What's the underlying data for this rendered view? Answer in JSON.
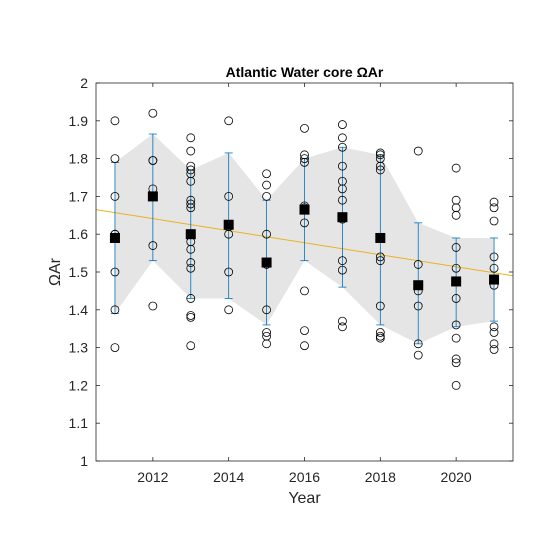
{
  "chart_data": {
    "type": "scatter",
    "title": "Atlantic Water core ΩAr",
    "xlabel": "Year",
    "ylabel": "ΩAr",
    "xlim": [
      2010.5,
      2021.5
    ],
    "ylim": [
      1.0,
      2.0
    ],
    "xticks": [
      2012,
      2014,
      2016,
      2018,
      2020
    ],
    "yticks": [
      1.0,
      1.1,
      1.2,
      1.3,
      1.4,
      1.5,
      1.6,
      1.7,
      1.8,
      1.9,
      2.0
    ],
    "ytick_labels": [
      "1",
      "1.1",
      "1.2",
      "1.3",
      "1.4",
      "1.5",
      "1.6",
      "1.7",
      "1.8",
      "1.9",
      "2"
    ],
    "grid": false,
    "legend": false,
    "colors": {
      "band": "#e5e5e5",
      "errorbar": "#0072bd",
      "trend": "#edb120",
      "mean_marker": "#000000",
      "sample_marker": "#000000",
      "axes": "#262626"
    },
    "samples": [
      {
        "year": 2011,
        "values": [
          1.9,
          1.8,
          1.7,
          1.6,
          1.6,
          1.5,
          1.4,
          1.3
        ]
      },
      {
        "year": 2012,
        "values": [
          1.92,
          1.795,
          1.795,
          1.72,
          1.7,
          1.57,
          1.41
        ]
      },
      {
        "year": 2013,
        "values": [
          1.855,
          1.82,
          1.78,
          1.77,
          1.76,
          1.74,
          1.69,
          1.68,
          1.67,
          1.58,
          1.56,
          1.525,
          1.51,
          1.43,
          1.385,
          1.38,
          1.305
        ]
      },
      {
        "year": 2014,
        "values": [
          1.9,
          1.7,
          1.62,
          1.6,
          1.5,
          1.4
        ]
      },
      {
        "year": 2015,
        "values": [
          1.76,
          1.73,
          1.7,
          1.6,
          1.52,
          1.4,
          1.34,
          1.33,
          1.31
        ]
      },
      {
        "year": 2016,
        "values": [
          1.88,
          1.81,
          1.8,
          1.79,
          1.675,
          1.67,
          1.63,
          1.45,
          1.345,
          1.305
        ]
      },
      {
        "year": 2017,
        "values": [
          1.89,
          1.855,
          1.83,
          1.78,
          1.74,
          1.72,
          1.69,
          1.64,
          1.53,
          1.505,
          1.37,
          1.355
        ]
      },
      {
        "year": 2018,
        "values": [
          1.815,
          1.81,
          1.8,
          1.78,
          1.77,
          1.54,
          1.53,
          1.41,
          1.34,
          1.33,
          1.325
        ]
      },
      {
        "year": 2019,
        "values": [
          1.82,
          1.52,
          1.45,
          1.41,
          1.31,
          1.28
        ]
      },
      {
        "year": 2020,
        "values": [
          1.775,
          1.69,
          1.67,
          1.65,
          1.565,
          1.51,
          1.475,
          1.43,
          1.36,
          1.325,
          1.27,
          1.26,
          1.2
        ]
      },
      {
        "year": 2021,
        "values": [
          1.685,
          1.67,
          1.635,
          1.54,
          1.51,
          1.465,
          1.355,
          1.34,
          1.31,
          1.295
        ]
      }
    ],
    "means": [
      {
        "year": 2011,
        "mean": 1.59,
        "err_low": 1.39,
        "err_high": 1.79
      },
      {
        "year": 2012,
        "mean": 1.7,
        "err_low": 1.53,
        "err_high": 1.865
      },
      {
        "year": 2013,
        "mean": 1.6,
        "err_low": 1.43,
        "err_high": 1.77
      },
      {
        "year": 2014,
        "mean": 1.625,
        "err_low": 1.43,
        "err_high": 1.815
      },
      {
        "year": 2015,
        "mean": 1.525,
        "err_low": 1.36,
        "err_high": 1.69
      },
      {
        "year": 2016,
        "mean": 1.665,
        "err_low": 1.53,
        "err_high": 1.8
      },
      {
        "year": 2017,
        "mean": 1.645,
        "err_low": 1.46,
        "err_high": 1.83
      },
      {
        "year": 2018,
        "mean": 1.59,
        "err_low": 1.36,
        "err_high": 1.81
      },
      {
        "year": 2019,
        "mean": 1.465,
        "err_low": 1.31,
        "err_high": 1.63
      },
      {
        "year": 2020,
        "mean": 1.475,
        "err_low": 1.355,
        "err_high": 1.59
      },
      {
        "year": 2021,
        "mean": 1.48,
        "err_low": 1.37,
        "err_high": 1.59
      }
    ],
    "trend_line": {
      "x": [
        2010.5,
        2021.5
      ],
      "y": [
        1.665,
        1.49
      ]
    }
  }
}
